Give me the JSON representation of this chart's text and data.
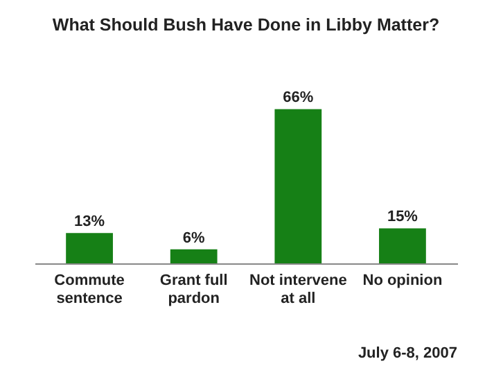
{
  "chart_data": {
    "type": "bar",
    "title": "What Should Bush Have Done in Libby Matter?",
    "categories": [
      "Commute sentence",
      "Grant full pardon",
      "Not intervene at all",
      "No opinion"
    ],
    "values": [
      13,
      6,
      66,
      15
    ],
    "value_labels": [
      "13%",
      "6%",
      "66%",
      "15%"
    ],
    "color": "#168016",
    "annotations": [
      "July 6-8, 2007"
    ]
  }
}
